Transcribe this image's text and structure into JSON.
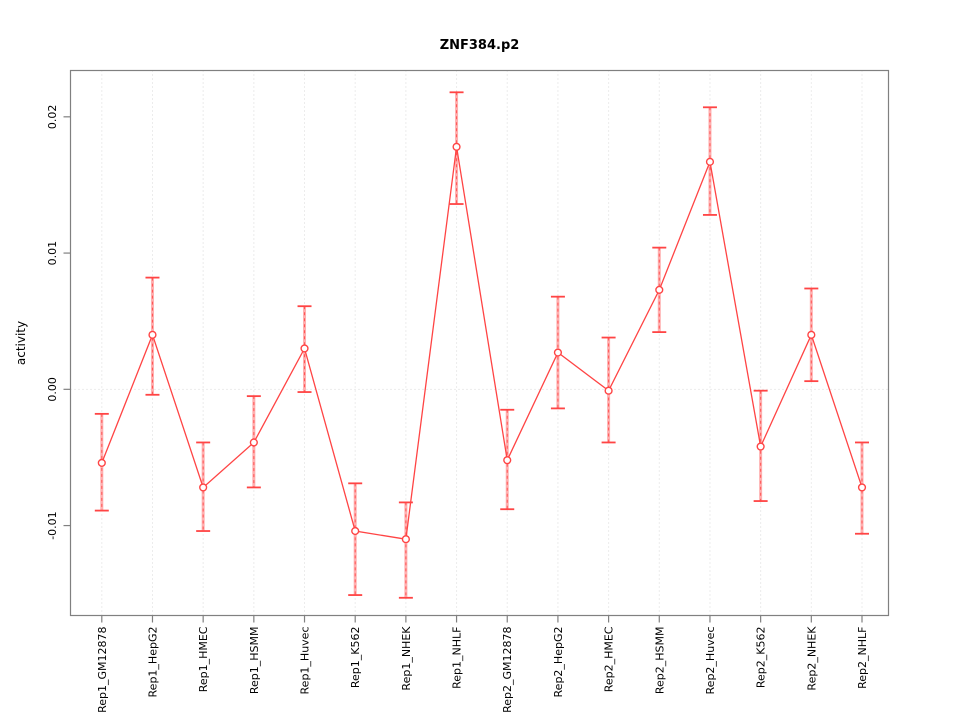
{
  "title": "ZNF384.p2",
  "chart_data": {
    "type": "line",
    "title": "ZNF384.p2",
    "xlabel": "",
    "ylabel": "activity",
    "legend_position": "none",
    "grid": "dotted vertical gridline at every category; dotted horizontal line at y=0",
    "categories": [
      "Rep1_GM12878",
      "Rep1_HepG2",
      "Rep1_HMEC",
      "Rep1_HSMM",
      "Rep1_Huvec",
      "Rep1_K562",
      "Rep1_NHEK",
      "Rep1_NHLF",
      "Rep2_GM12878",
      "Rep2_HepG2",
      "Rep2_HMEC",
      "Rep2_HSMM",
      "Rep2_Huvec",
      "Rep2_K562",
      "Rep2_NHEK",
      "Rep2_NHLF"
    ],
    "series": [
      {
        "name": "activity",
        "values": [
          -0.0054,
          0.004,
          -0.0072,
          -0.0039,
          0.003,
          -0.0104,
          -0.011,
          0.0178,
          -0.0052,
          0.0027,
          -0.0001,
          0.0073,
          0.0167,
          -0.0042,
          0.004,
          -0.0072
        ]
      }
    ],
    "error_low": [
      -0.0089,
      -0.0004,
      -0.0104,
      -0.0072,
      -0.0002,
      -0.0151,
      -0.0153,
      0.0136,
      -0.0088,
      -0.0014,
      -0.0039,
      0.0042,
      0.0128,
      -0.0082,
      0.0006,
      -0.0106
    ],
    "error_high": [
      -0.0018,
      0.0082,
      -0.0039,
      -0.0005,
      0.0061,
      -0.0069,
      -0.0083,
      0.0218,
      -0.0015,
      0.0068,
      0.0038,
      0.0104,
      0.0207,
      -0.0001,
      0.0074,
      -0.0039
    ],
    "yticks": [
      -0.01,
      0.0,
      0.01,
      0.02
    ],
    "ytick_labels": [
      "-0.01",
      "0.00",
      "0.01",
      "0.02"
    ],
    "ylim": [
      -0.0166,
      0.0234
    ],
    "marker": "open-circle",
    "colors": {
      "line": "#ff4444",
      "error_cap": "#ff4444",
      "error_stem_thick": "#ffafaf",
      "error_stem_dash": "#ff5555",
      "marker_stroke": "#ff4444",
      "marker_fill": "#ffffff",
      "axis": "#808080",
      "gridline": "#d9d9d9",
      "text": "#000000",
      "background": "#ffffff"
    }
  }
}
